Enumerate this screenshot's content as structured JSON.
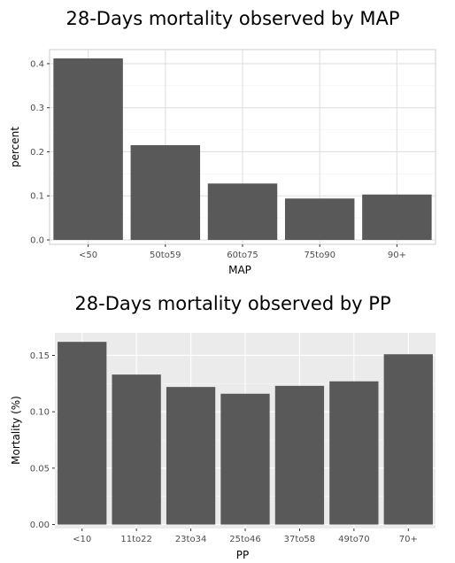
{
  "chart_data": [
    {
      "type": "bar",
      "title": "28-Days mortality observed by MAP",
      "xlabel": "MAP",
      "ylabel": "percent",
      "categories": [
        "<50",
        "50to59",
        "60to75",
        "75to90",
        "90+"
      ],
      "values": [
        0.412,
        0.215,
        0.128,
        0.094,
        0.103
      ],
      "ylim": [
        -0.01,
        0.432
      ],
      "yticks": [
        0.0,
        0.1,
        0.2,
        0.3,
        0.4
      ],
      "ytick_labels": [
        "0.0",
        "0.1",
        "0.2",
        "0.3",
        "0.4"
      ],
      "theme": "light",
      "grid": true,
      "colors": {
        "bar": "#595959",
        "panel_bg": "#ffffff",
        "panel_border": "#cccccc",
        "grid_major": "#e0e0e0",
        "grid_minor": "#f0f0f0"
      }
    },
    {
      "type": "bar",
      "title": "28-Days mortality observed by PP",
      "xlabel": "PP",
      "ylabel": "Mortality (%)",
      "categories": [
        "<10",
        "11to22",
        "23to34",
        "25to46",
        "37to58",
        "49to70",
        "70+"
      ],
      "values": [
        0.162,
        0.133,
        0.122,
        0.116,
        0.123,
        0.127,
        0.151
      ],
      "ylim": [
        -0.0035,
        0.17
      ],
      "yticks": [
        0.0,
        0.05,
        0.1,
        0.15
      ],
      "ytick_labels": [
        "0.00",
        "0.05",
        "0.10",
        "0.15"
      ],
      "theme": "grey",
      "grid": true,
      "colors": {
        "bar": "#595959",
        "panel_bg": "#ebebeb",
        "panel_border": "none",
        "grid_major": "#ffffff",
        "grid_minor": "#f5f5f5"
      }
    }
  ]
}
